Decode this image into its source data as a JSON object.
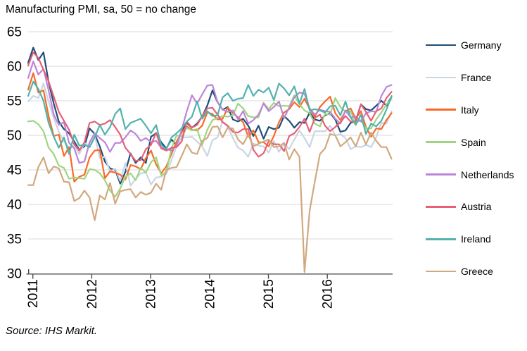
{
  "title": "Manufacturing PMI, sa, 50 = no change",
  "source": "Source: IHS Markit.",
  "chart_data": {
    "type": "line",
    "title": "Manufacturing PMI, sa, 50 = no change",
    "x_unit": "monthly",
    "x_range": [
      "2011-01",
      "2016-12"
    ],
    "x_tick_labels": [
      "2011",
      "2012",
      "2013",
      "2014",
      "2015",
      "2016"
    ],
    "ylim": [
      30,
      65
    ],
    "y_ticks": [
      30,
      35,
      40,
      45,
      50,
      55,
      60,
      65
    ],
    "grid": "horizontal",
    "gridline_color": "#D9D9D9",
    "axis_color": "#4D4D4D",
    "legend_position": "right",
    "series": [
      {
        "name": "Germany",
        "color": "#1F4E79",
        "values": [
          60.5,
          62.7,
          60.9,
          62.0,
          57.7,
          54.6,
          52.0,
          50.9,
          50.3,
          49.1,
          47.9,
          48.4,
          51.0,
          50.2,
          48.4,
          46.2,
          45.2,
          45.0,
          43.0,
          44.7,
          47.4,
          46.0,
          46.8,
          46.0,
          49.8,
          50.3,
          49.0,
          48.1,
          49.4,
          48.6,
          50.7,
          51.8,
          51.1,
          51.7,
          52.7,
          54.3,
          56.5,
          54.8,
          53.7,
          54.1,
          52.3,
          52.0,
          52.4,
          51.4,
          49.9,
          51.4,
          49.5,
          51.2,
          50.9,
          51.1,
          52.8,
          52.1,
          51.1,
          51.9,
          51.8,
          53.3,
          52.3,
          52.1,
          52.9,
          53.2,
          52.3,
          50.5,
          50.7,
          51.8,
          52.1,
          54.5,
          53.8,
          53.6,
          54.3,
          55.0,
          54.3,
          55.6
        ]
      },
      {
        "name": "France",
        "color": "#C9D6E4",
        "values": [
          54.9,
          55.7,
          55.4,
          57.5,
          54.9,
          52.5,
          50.5,
          49.1,
          48.2,
          48.5,
          47.3,
          48.9,
          48.5,
          50.0,
          46.7,
          46.9,
          44.7,
          45.2,
          43.4,
          46.0,
          42.7,
          43.7,
          44.5,
          44.6,
          42.9,
          43.9,
          44.0,
          44.4,
          46.4,
          48.4,
          49.7,
          49.7,
          49.8,
          49.1,
          48.4,
          47.0,
          49.3,
          49.7,
          52.1,
          51.2,
          49.6,
          48.2,
          47.8,
          46.9,
          48.8,
          48.5,
          48.4,
          47.5,
          49.2,
          47.6,
          48.8,
          48.0,
          49.4,
          50.7,
          49.6,
          48.3,
          50.6,
          50.6,
          50.6,
          51.4,
          50.0,
          50.2,
          49.6,
          48.0,
          48.4,
          48.3,
          48.6,
          48.3,
          49.7,
          51.8,
          51.7,
          53.5
        ]
      },
      {
        "name": "Italy",
        "color": "#F96A25",
        "values": [
          56.6,
          59.0,
          56.2,
          56.5,
          52.8,
          49.9,
          50.1,
          47.0,
          48.3,
          43.3,
          44.0,
          44.3,
          46.8,
          47.8,
          47.9,
          43.8,
          44.8,
          44.6,
          44.3,
          43.6,
          45.7,
          45.5,
          45.1,
          46.7,
          47.8,
          45.8,
          44.5,
          45.5,
          47.3,
          49.1,
          50.4,
          51.3,
          50.8,
          50.7,
          51.4,
          53.3,
          53.1,
          52.3,
          52.4,
          54.0,
          53.2,
          52.6,
          51.9,
          49.8,
          50.7,
          49.0,
          49.0,
          48.4,
          49.9,
          51.9,
          53.3,
          53.8,
          54.8,
          54.1,
          55.3,
          53.8,
          52.7,
          54.1,
          54.9,
          55.6,
          53.2,
          52.2,
          53.5,
          53.9,
          52.4,
          53.5,
          51.2,
          49.8,
          51.0,
          50.9,
          52.2,
          53.2
        ]
      },
      {
        "name": "Spain",
        "color": "#9FD580",
        "values": [
          52.0,
          52.1,
          51.6,
          50.6,
          48.2,
          47.3,
          45.6,
          45.3,
          43.7,
          43.9,
          43.8,
          43.7,
          45.1,
          45.0,
          44.5,
          43.5,
          42.0,
          41.1,
          42.3,
          44.0,
          44.5,
          43.5,
          45.3,
          44.6,
          46.1,
          46.8,
          44.2,
          44.7,
          48.1,
          50.0,
          49.8,
          51.1,
          50.7,
          50.9,
          48.6,
          50.8,
          52.2,
          52.5,
          52.8,
          52.7,
          52.9,
          54.6,
          53.9,
          52.8,
          52.6,
          52.6,
          54.7,
          53.8,
          54.7,
          54.2,
          54.3,
          54.2,
          55.8,
          54.5,
          53.6,
          53.2,
          51.7,
          51.3,
          53.1,
          53.0,
          55.4,
          54.1,
          53.4,
          53.5,
          51.8,
          52.2,
          51.0,
          51.0,
          52.3,
          53.3,
          54.5,
          55.3
        ]
      },
      {
        "name": "Netherlands",
        "color": "#BE84D9",
        "values": [
          58.3,
          60.7,
          58.8,
          59.6,
          56.5,
          53.0,
          51.5,
          51.9,
          48.9,
          48.1,
          46.0,
          46.2,
          49.0,
          50.3,
          49.6,
          49.0,
          47.6,
          48.9,
          48.9,
          49.7,
          50.7,
          50.2,
          49.2,
          49.6,
          49.0,
          49.2,
          48.2,
          48.0,
          47.8,
          48.5,
          50.8,
          53.5,
          55.8,
          54.6,
          55.9,
          57.2,
          57.3,
          54.8,
          53.7,
          53.4,
          53.6,
          52.3,
          53.5,
          51.7,
          52.2,
          53.0,
          54.6,
          53.5,
          54.1,
          54.9,
          52.5,
          54.0,
          55.5,
          56.2,
          56.0,
          53.9,
          53.0,
          53.7,
          53.5,
          53.4,
          52.4,
          51.7,
          53.6,
          52.6,
          52.7,
          52.0,
          53.2,
          53.5,
          53.4,
          55.7,
          57.0,
          57.3
        ]
      },
      {
        "name": "Austria",
        "color": "#E75F78",
        "values": [
          60.1,
          62.0,
          61.2,
          59.5,
          57.8,
          55.6,
          53.4,
          52.1,
          50.8,
          48.7,
          47.8,
          49.0,
          51.8,
          52.0,
          51.5,
          51.7,
          52.2,
          51.2,
          50.1,
          48.2,
          47.3,
          46.3,
          46.4,
          48.0,
          48.6,
          50.4,
          48.1,
          47.8,
          48.2,
          48.3,
          49.1,
          52.0,
          51.1,
          51.5,
          52.8,
          53.9,
          54.0,
          53.0,
          51.9,
          51.4,
          50.5,
          50.4,
          50.9,
          50.9,
          47.9,
          46.9,
          47.4,
          49.2,
          48.7,
          48.7,
          47.7,
          49.9,
          50.3,
          51.2,
          52.4,
          50.5,
          52.5,
          53.0,
          51.4,
          50.6,
          51.2,
          51.9,
          52.8,
          52.0,
          52.0,
          54.5,
          53.4,
          52.1,
          53.5,
          53.9,
          55.4,
          56.3
        ]
      },
      {
        "name": "Ireland",
        "color": "#52B2AC",
        "values": [
          55.7,
          57.8,
          56.7,
          55.0,
          51.8,
          49.8,
          48.2,
          49.7,
          47.3,
          50.1,
          48.5,
          48.6,
          48.3,
          49.7,
          51.5,
          50.1,
          51.2,
          53.1,
          53.9,
          50.9,
          51.8,
          52.1,
          52.4,
          51.4,
          50.3,
          51.5,
          48.6,
          48.0,
          49.7,
          50.3,
          51.0,
          52.0,
          52.7,
          54.9,
          52.4,
          53.5,
          52.8,
          52.9,
          55.5,
          56.1,
          55.0,
          55.3,
          55.4,
          57.3,
          55.7,
          56.6,
          56.2,
          56.9,
          55.1,
          57.5,
          56.8,
          55.8,
          57.1,
          54.6,
          56.7,
          53.6,
          53.8,
          53.6,
          53.3,
          54.2,
          54.3,
          52.9,
          54.9,
          52.6,
          51.5,
          53.0,
          50.2,
          51.7,
          51.3,
          52.1,
          53.7,
          55.7
        ]
      },
      {
        "name": "Greece",
        "color": "#D2A87E",
        "values": [
          42.8,
          42.8,
          45.4,
          46.8,
          44.5,
          45.5,
          45.2,
          43.3,
          43.2,
          40.5,
          40.9,
          42.0,
          41.0,
          37.7,
          41.3,
          40.7,
          43.1,
          40.1,
          41.9,
          42.1,
          42.2,
          41.0,
          41.8,
          41.4,
          41.7,
          43.0,
          42.1,
          45.0,
          45.3,
          45.4,
          47.0,
          48.7,
          47.5,
          47.3,
          49.2,
          49.6,
          51.2,
          51.3,
          49.7,
          51.1,
          51.0,
          49.4,
          48.7,
          50.1,
          48.4,
          48.8,
          49.1,
          49.4,
          48.3,
          48.4,
          48.9,
          46.5,
          48.0,
          46.9,
          30.2,
          39.1,
          43.3,
          47.3,
          48.1,
          50.2,
          50.0,
          48.4,
          49.0,
          49.7,
          48.4,
          50.4,
          48.7,
          50.4,
          49.2,
          48.3,
          48.3,
          46.6
        ]
      }
    ]
  }
}
